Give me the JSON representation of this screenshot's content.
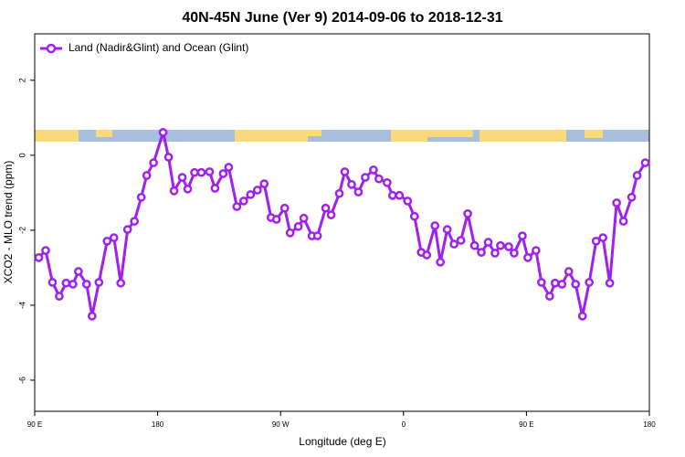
{
  "chart_data": {
    "type": "line",
    "title": "40N-45N June (Ver 9)   2014-09-06 to 2018-12-31",
    "x_label": "Longitude (deg E)",
    "y_label": "XCO2 - MLO trend (ppm)",
    "legend_position": "top-left",
    "xlim": [
      90,
      540
    ],
    "ylim": [
      -6.83,
      3.24
    ],
    "xticks": [
      {
        "value": 90,
        "label": "90 E"
      },
      180,
      {
        "value": 270,
        "label": "90 W"
      },
      {
        "value": 360,
        "label": "0"
      },
      {
        "value": 450,
        "label": "90 E"
      },
      {
        "value": 540,
        "label": "180"
      }
    ],
    "yticks": [
      -6,
      -4,
      -2,
      0,
      2
    ],
    "x": [
      93,
      98,
      103,
      108,
      113,
      118,
      122,
      128,
      132,
      137,
      143,
      148,
      153,
      158,
      163,
      168,
      172,
      177,
      184,
      188,
      192,
      198,
      202,
      207,
      212,
      218,
      222,
      228,
      232,
      238,
      243,
      248,
      253,
      258,
      263,
      267,
      273,
      277,
      283,
      287,
      293,
      297,
      303,
      307,
      313,
      317,
      322,
      327,
      332,
      338,
      342,
      348,
      352,
      357,
      363,
      368,
      373,
      377,
      383,
      387,
      392,
      397,
      402,
      407,
      412,
      417,
      422,
      427,
      431,
      437,
      441,
      447,
      451,
      457,
      461,
      467,
      471,
      476,
      481,
      486,
      491,
      496,
      501,
      506,
      511,
      516,
      521,
      527,
      531,
      537
    ],
    "series": [
      {
        "name": "Land (Nadir&Glint) and Ocean (Glint)",
        "color": "#a020f0",
        "values": [
          -2.73,
          -2.54,
          -3.39,
          -3.76,
          -3.41,
          -3.44,
          -3.1,
          -3.44,
          -4.29,
          -3.39,
          -2.29,
          -2.2,
          -3.41,
          -1.98,
          -1.76,
          -1.12,
          -0.54,
          -0.2,
          0.61,
          -0.05,
          -0.95,
          -0.59,
          -0.9,
          -0.46,
          -0.46,
          -0.44,
          -0.88,
          -0.49,
          -0.32,
          -1.37,
          -1.22,
          -1.05,
          -0.93,
          -0.76,
          -1.66,
          -1.71,
          -1.41,
          -2.07,
          -1.9,
          -1.68,
          -2.15,
          -2.15,
          -1.41,
          -1.59,
          -1.02,
          -0.44,
          -0.78,
          -0.98,
          -0.59,
          -0.39,
          -0.63,
          -0.73,
          -1.07,
          -1.07,
          -1.22,
          -1.63,
          -2.59,
          -2.66,
          -1.88,
          -2.85,
          -1.98,
          -2.37,
          -2.27,
          -1.56,
          -2.41,
          -2.59,
          -2.32,
          -2.61,
          -2.41,
          -2.44,
          -2.61,
          -2.15,
          -2.73,
          -2.54,
          -3.39,
          -3.76,
          -3.41,
          -3.44,
          -3.1,
          -3.44,
          -4.29,
          -3.39,
          -2.29,
          -2.2,
          -3.41,
          -1.27,
          -1.76,
          -1.12,
          -0.54,
          -0.2
        ]
      }
    ]
  }
}
